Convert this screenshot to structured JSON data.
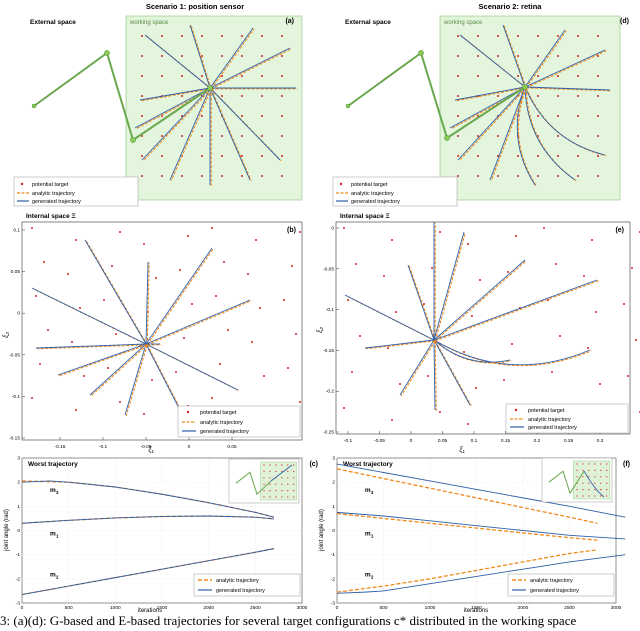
{
  "colors": {
    "arm": "#6aa84f",
    "arm_node": "#88cc55",
    "workspace_fill": "#e3f5dc",
    "workspace_stroke": "#8bc57a",
    "target": "#d62020",
    "analytic": "#f08a1d",
    "generated": "#2f5fa8",
    "inset_fill": "#dff2d8"
  },
  "legend": {
    "potential_target": "potential target",
    "analytic": "analytic trajectory",
    "generated": "generated trajectory"
  },
  "panel_a": {
    "title": "Scenario 1: position sensor",
    "letter": "(a)",
    "external_label": "External space",
    "working_label": "working space"
  },
  "panel_d": {
    "title": "Scenario 2: retina",
    "letter": "(d)",
    "external_label": "External space",
    "working_label": "working space"
  },
  "panel_b": {
    "title": "Internal space Ξ",
    "letter": "(b)",
    "xlabel": "ξ₁",
    "ylabel": "ξ₂",
    "xticks": [
      "-0.15",
      "-0.1",
      "-0.05",
      "0",
      "0.05"
    ],
    "yticks": [
      "0.1",
      "0.05",
      "0",
      "-0.05",
      "-0.1",
      "-0.15"
    ]
  },
  "panel_e": {
    "title": "Internal space Ξ",
    "letter": "(e)",
    "xlabel": "ξ₁",
    "ylabel": "ξ₂",
    "xticks": [
      "-0.1",
      "-0.05",
      "0",
      "0.05",
      "0.1",
      "0.15",
      "0.2",
      "0.25",
      "0.3"
    ],
    "yticks": [
      "0",
      "-0.05",
      "-0.1",
      "-0.15",
      "-0.2",
      "-0.25"
    ]
  },
  "panel_c": {
    "title": "Worst trajectory",
    "letter": "(c)",
    "xlabel": "iterations",
    "ylabel": "joint angle (rad)",
    "xticks": [
      "0",
      "500",
      "1000",
      "1500",
      "2000",
      "2500",
      "3000"
    ],
    "yticks": [
      "3",
      "2",
      "1",
      "0",
      "-1",
      "-2",
      "-3"
    ],
    "curve_labels": [
      "m",
      "m",
      "m"
    ],
    "curve_subs": [
      "3",
      "1",
      "2"
    ]
  },
  "panel_f": {
    "title": "Worst trajectory",
    "letter": "(f)",
    "xlabel": "iterations",
    "ylabel": "joint angle (rad)",
    "xticks": [
      "0",
      "500",
      "1000",
      "1500",
      "2000",
      "2500",
      "3000"
    ],
    "yticks": [
      "3",
      "2",
      "1",
      "0",
      "-1",
      "-2",
      "-3"
    ],
    "curve_labels": [
      "m",
      "m",
      "m"
    ],
    "curve_subs": [
      "3",
      "1",
      "2"
    ]
  },
  "chart_data": [
    {
      "type": "line",
      "panel": "(c)",
      "title": "Worst trajectory",
      "xlabel": "iterations",
      "ylabel": "joint angle (rad)",
      "xlim": [
        0,
        3000
      ],
      "ylim": [
        -3,
        3
      ],
      "series": [
        {
          "name": "m3 analytic",
          "x": [
            0,
            500,
            1000,
            1500,
            2000,
            2500,
            2700
          ],
          "values": [
            2.05,
            2.0,
            1.8,
            1.5,
            1.15,
            0.75,
            0.55
          ]
        },
        {
          "name": "m3 generated",
          "x": [
            0,
            300,
            500,
            1000,
            1500,
            2000,
            2500,
            2700
          ],
          "values": [
            2.0,
            2.05,
            2.0,
            1.8,
            1.5,
            1.15,
            0.75,
            0.55
          ]
        },
        {
          "name": "m1 analytic",
          "x": [
            0,
            500,
            1000,
            1500,
            2000,
            2500,
            2700
          ],
          "values": [
            0.3,
            0.42,
            0.52,
            0.58,
            0.6,
            0.55,
            0.48
          ]
        },
        {
          "name": "m1 generated",
          "x": [
            0,
            500,
            1000,
            1500,
            2000,
            2500,
            2700
          ],
          "values": [
            0.3,
            0.42,
            0.52,
            0.58,
            0.6,
            0.55,
            0.48
          ]
        },
        {
          "name": "m2 analytic",
          "x": [
            0,
            500,
            1000,
            1500,
            2000,
            2500,
            2700
          ],
          "values": [
            -2.65,
            -2.3,
            -1.95,
            -1.6,
            -1.25,
            -0.9,
            -0.75
          ]
        },
        {
          "name": "m2 generated",
          "x": [
            0,
            500,
            1000,
            1500,
            2000,
            2500,
            2700
          ],
          "values": [
            -2.65,
            -2.3,
            -1.95,
            -1.6,
            -1.25,
            -0.9,
            -0.75
          ]
        }
      ]
    },
    {
      "type": "line",
      "panel": "(f)",
      "title": "Worst trajectory",
      "xlabel": "iterations",
      "ylabel": "joint angle (rad)",
      "xlim": [
        0,
        3000
      ],
      "ylim": [
        -3,
        3
      ],
      "series": [
        {
          "name": "m3 analytic",
          "x": [
            0,
            500,
            1000,
            1500,
            2000,
            2500,
            2800
          ],
          "values": [
            2.55,
            2.15,
            1.75,
            1.35,
            0.95,
            0.55,
            0.3
          ]
        },
        {
          "name": "m3 generated",
          "x": [
            0,
            500,
            1000,
            1500,
            2000,
            2500,
            3100
          ],
          "values": [
            2.75,
            2.4,
            2.05,
            1.7,
            1.35,
            1.0,
            0.55
          ]
        },
        {
          "name": "m1 analytic",
          "x": [
            0,
            500,
            1000,
            1500,
            2000,
            2500,
            2800
          ],
          "values": [
            0.7,
            0.5,
            0.3,
            0.1,
            -0.1,
            -0.3,
            -0.4
          ]
        },
        {
          "name": "m1 generated",
          "x": [
            0,
            500,
            1000,
            1500,
            2000,
            2500,
            3100
          ],
          "values": [
            0.75,
            0.6,
            0.4,
            0.2,
            0.0,
            -0.2,
            -0.35
          ]
        },
        {
          "name": "m2 analytic",
          "x": [
            0,
            500,
            1000,
            1500,
            2000,
            2500,
            2800
          ],
          "values": [
            -2.55,
            -2.3,
            -2.0,
            -1.65,
            -1.3,
            -0.95,
            -0.8
          ]
        },
        {
          "name": "m2 generated",
          "x": [
            0,
            300,
            500,
            1000,
            1500,
            2000,
            2500,
            3100
          ],
          "values": [
            -2.6,
            -2.55,
            -2.5,
            -2.2,
            -1.9,
            -1.6,
            -1.3,
            -1.0
          ]
        }
      ]
    }
  ],
  "caption": "3: (a)(d): G-based and E-based trajectories for several target configurations c* distributed in the working space"
}
